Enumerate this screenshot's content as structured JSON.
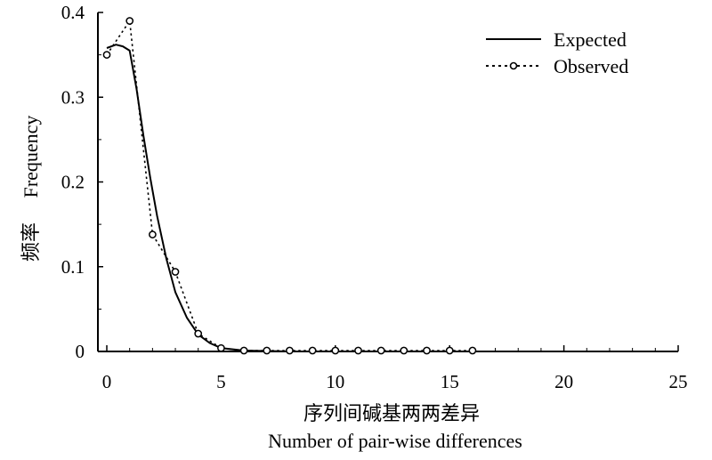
{
  "chart_data": {
    "type": "line",
    "xlabel_cn": "序列间碱基两两差异",
    "xlabel_en": "Number of pair-wise differences",
    "ylabel_cn": "频率",
    "ylabel_en": "Frequency",
    "xlim": [
      0,
      25
    ],
    "ylim": [
      0,
      0.4
    ],
    "x_ticks": [
      0,
      5,
      10,
      15,
      20,
      25
    ],
    "y_ticks": [
      0,
      0.1,
      0.2,
      0.3,
      0.4
    ],
    "x_tick_labels": [
      "0",
      "5",
      "10",
      "15",
      "20",
      "25"
    ],
    "y_tick_labels": [
      "0",
      "0.1",
      "0.2",
      "0.3",
      "0.4"
    ],
    "legend_position": "top-right",
    "series": [
      {
        "name": "Expected",
        "style": "solid",
        "color": "#000000",
        "x": [
          0,
          0.4,
          0.7,
          1,
          1.3,
          1.6,
          1.9,
          2.2,
          2.6,
          3,
          3.5,
          4,
          4.5,
          5,
          6,
          8,
          10,
          15,
          20,
          25
        ],
        "y": [
          0.358,
          0.362,
          0.36,
          0.355,
          0.31,
          0.255,
          0.205,
          0.16,
          0.11,
          0.07,
          0.04,
          0.02,
          0.01,
          0.004,
          0.001,
          0,
          0,
          0,
          0,
          0
        ]
      },
      {
        "name": "Observed",
        "style": "dotted-circle",
        "color": "#000000",
        "x": [
          0,
          1,
          2,
          3,
          4,
          5,
          6,
          7,
          8,
          9,
          10,
          11,
          12,
          13,
          14,
          15,
          16
        ],
        "y": [
          0.35,
          0.39,
          0.138,
          0.094,
          0.021,
          0.004,
          0.001,
          0.001,
          0.001,
          0.001,
          0.001,
          0.001,
          0.001,
          0.001,
          0.001,
          0.001,
          0.001
        ]
      }
    ]
  }
}
